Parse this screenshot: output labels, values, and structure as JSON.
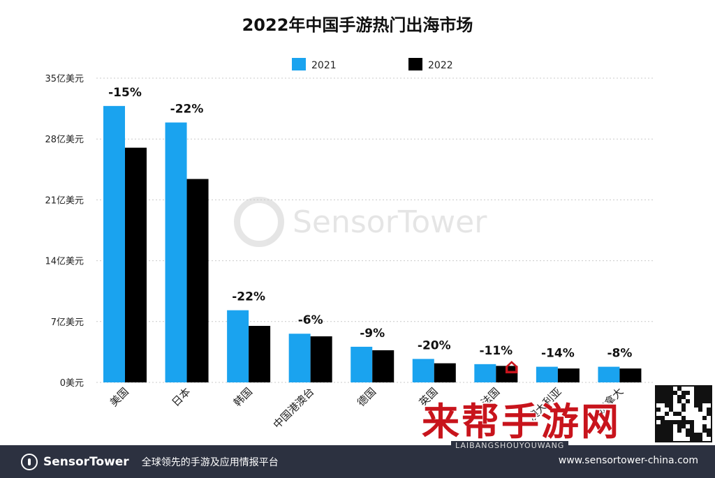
{
  "chart_data": {
    "type": "bar",
    "title": "2022年中国手游热门出海市场",
    "categories": [
      "美国",
      "日本",
      "韩国",
      "中国港澳台",
      "德国",
      "英国",
      "法国",
      "澳大利亚",
      "加拿大"
    ],
    "series": [
      {
        "name": "2021",
        "color": "#1aa3ef",
        "values": [
          31.8,
          29.9,
          8.3,
          5.6,
          4.1,
          2.7,
          2.1,
          1.8,
          1.8
        ]
      },
      {
        "name": "2022",
        "color": "#000000",
        "values": [
          27.0,
          23.4,
          6.5,
          5.3,
          3.7,
          2.2,
          1.9,
          1.6,
          1.6
        ]
      }
    ],
    "change_labels": [
      "-15%",
      "-22%",
      "-22%",
      "-6%",
      "-9%",
      "-20%",
      "-11%",
      "-14%",
      "-8%"
    ],
    "y_ticks": [
      "0美元",
      "7亿美元",
      "14亿美元",
      "21亿美元",
      "28亿美元",
      "35亿美元"
    ],
    "ylim": [
      0,
      35
    ],
    "y_step": 7,
    "grid": true,
    "legend_position": "top-center"
  },
  "watermark": {
    "text": "SensorTower"
  },
  "footer": {
    "logo_text": "SensorTower",
    "slogan": "全球领先的手游及应用情报平台",
    "url": "www.sensortower-china.com"
  },
  "overlay": {
    "brand": "来帮手游网",
    "sub": "LAIBANGSHOUYOUWANG"
  }
}
